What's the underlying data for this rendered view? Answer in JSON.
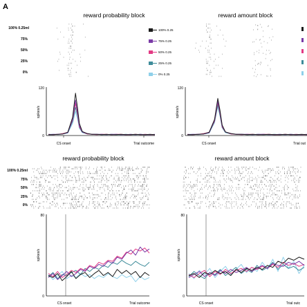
{
  "panel_label": "A",
  "colors": {
    "c100": "#1b1b1b",
    "c75": "#7a3aa6",
    "c50": "#e23a84",
    "c25": "#3e8c9a",
    "c0": "#8fd0ea",
    "raster": "#333333"
  },
  "legend": {
    "items": [
      {
        "label": "100% 0.25",
        "color": "#1b1b1b"
      },
      {
        "label": "75% 0.25",
        "color": "#7a3aa6"
      },
      {
        "label": "50% 0.25",
        "color": "#e23a84"
      },
      {
        "label": "25% 0.25",
        "color": "#3e8c9a"
      },
      {
        "label": "0% 0.25",
        "color": "#8fd0ea"
      }
    ]
  },
  "chart_data": [
    {
      "type": "line",
      "title": "reward probability block",
      "row_labels": [
        "100% 0.25ml",
        "75%",
        "50%",
        "25%",
        "0%"
      ],
      "ylabel": "spikes/s",
      "ylim": [
        0,
        120
      ],
      "yticks": [
        "0",
        "60",
        "120"
      ],
      "xtick_labels": [
        "CS onset",
        "Trial outcome"
      ],
      "x": [
        0,
        0.05,
        0.1,
        0.15,
        0.2,
        0.25,
        0.28,
        0.3,
        0.32,
        0.35,
        0.4,
        0.45,
        0.5,
        0.55,
        0.6,
        0.65,
        0.7,
        0.75,
        0.8,
        0.85,
        0.9,
        0.95,
        1.0,
        1.05,
        1.1
      ],
      "series": [
        {
          "name": "100% 0.25",
          "color": "#1b1b1b",
          "values": [
            2,
            2,
            3,
            4,
            8,
            45,
            105,
            70,
            30,
            10,
            5,
            3,
            3,
            2,
            3,
            2,
            2,
            3,
            2,
            2,
            3,
            2,
            2,
            3,
            2
          ]
        },
        {
          "name": "75% 0.25",
          "color": "#7a3aa6",
          "values": [
            2,
            3,
            3,
            4,
            7,
            40,
            88,
            60,
            25,
            9,
            5,
            3,
            3,
            3,
            2,
            3,
            3,
            2,
            2,
            3,
            2,
            3,
            2,
            2,
            3
          ]
        },
        {
          "name": "50% 0.25",
          "color": "#e23a84",
          "values": [
            3,
            2,
            3,
            5,
            8,
            38,
            80,
            55,
            22,
            9,
            4,
            3,
            2,
            3,
            3,
            2,
            3,
            3,
            2,
            2,
            3,
            2,
            3,
            2,
            2
          ]
        },
        {
          "name": "25% 0.25",
          "color": "#3e8c9a",
          "values": [
            2,
            2,
            3,
            4,
            7,
            35,
            70,
            50,
            20,
            8,
            4,
            3,
            3,
            2,
            2,
            3,
            2,
            2,
            3,
            2,
            2,
            3,
            2,
            2,
            2
          ]
        },
        {
          "name": "0% 0.25",
          "color": "#8fd0ea",
          "values": [
            3,
            3,
            2,
            4,
            6,
            30,
            60,
            42,
            18,
            7,
            4,
            3,
            2,
            3,
            2,
            2,
            3,
            2,
            2,
            3,
            2,
            2,
            3,
            2,
            2
          ]
        }
      ]
    },
    {
      "type": "line",
      "title": "reward amount block",
      "ylabel": "spikes/s",
      "ylim": [
        0,
        120
      ],
      "yticks": [
        "0",
        "60",
        "120"
      ],
      "xtick_labels": [
        "CS onset",
        "Trial out"
      ],
      "x": [
        0,
        0.05,
        0.1,
        0.15,
        0.2,
        0.25,
        0.28,
        0.3,
        0.32,
        0.35,
        0.4,
        0.45,
        0.5,
        0.55,
        0.6,
        0.65,
        0.7,
        0.75,
        0.8,
        0.85,
        0.9,
        0.95,
        1.0,
        1.05,
        1.1
      ],
      "series": [
        {
          "name": "100% 0.25",
          "color": "#1b1b1b",
          "values": [
            2,
            2,
            3,
            4,
            8,
            40,
            92,
            62,
            26,
            9,
            5,
            3,
            3,
            2,
            3,
            2,
            2,
            3,
            2,
            2,
            3,
            2,
            2,
            3,
            2
          ]
        },
        {
          "name": "75% 0.25",
          "color": "#7a3aa6",
          "values": [
            2,
            3,
            3,
            4,
            7,
            38,
            85,
            58,
            24,
            9,
            5,
            3,
            3,
            3,
            2,
            3,
            3,
            2,
            2,
            3,
            2,
            3,
            2,
            2,
            3
          ]
        },
        {
          "name": "50% 0.25",
          "color": "#e23a84",
          "values": [
            3,
            2,
            3,
            5,
            8,
            36,
            82,
            55,
            22,
            9,
            4,
            3,
            2,
            3,
            3,
            2,
            3,
            3,
            2,
            2,
            3,
            2,
            3,
            2,
            2
          ]
        },
        {
          "name": "25% 0.25",
          "color": "#3e8c9a",
          "values": [
            2,
            2,
            3,
            4,
            7,
            34,
            76,
            50,
            20,
            8,
            4,
            3,
            3,
            2,
            2,
            3,
            2,
            2,
            3,
            2,
            2,
            3,
            2,
            2,
            2
          ]
        },
        {
          "name": "0% 0.25",
          "color": "#8fd0ea",
          "values": [
            3,
            3,
            2,
            4,
            6,
            32,
            72,
            48,
            19,
            7,
            4,
            3,
            2,
            3,
            2,
            2,
            3,
            2,
            2,
            3,
            2,
            2,
            3,
            2,
            2
          ]
        }
      ]
    },
    {
      "type": "line",
      "title": "reward probability block",
      "row_labels": [
        "100% 0.25ml",
        "75%",
        "50%",
        "25%",
        "0%"
      ],
      "ylabel": "spikes/s",
      "ylim": [
        0,
        80
      ],
      "yticks": [
        "0",
        "40",
        "80"
      ],
      "xtick_labels": [
        "CS onset",
        "Trial outcome"
      ],
      "x": [
        0,
        0.05,
        0.1,
        0.15,
        0.2,
        0.25,
        0.3,
        0.35,
        0.4,
        0.45,
        0.5,
        0.55,
        0.6,
        0.65,
        0.7,
        0.75,
        0.8,
        0.85,
        0.9,
        0.95,
        1.0,
        1.05,
        1.1
      ],
      "series": [
        {
          "name": "100% 0.25",
          "color": "#1b1b1b",
          "values": [
            20,
            18,
            22,
            15,
            19,
            24,
            17,
            21,
            23,
            18,
            22,
            25,
            20,
            23,
            19,
            26,
            22,
            25,
            21,
            24,
            18,
            23,
            20
          ]
        },
        {
          "name": "75% 0.25",
          "color": "#7a3aa6",
          "values": [
            18,
            22,
            16,
            20,
            24,
            19,
            22,
            26,
            24,
            29,
            27,
            31,
            29,
            34,
            32,
            38,
            36,
            42,
            45,
            40,
            48,
            43,
            46
          ]
        },
        {
          "name": "50% 0.25",
          "color": "#e23a84",
          "values": [
            22,
            19,
            24,
            18,
            21,
            25,
            23,
            27,
            25,
            30,
            28,
            33,
            31,
            35,
            34,
            39,
            37,
            43,
            41,
            46,
            44,
            47,
            42
          ]
        },
        {
          "name": "25% 0.25",
          "color": "#3e8c9a",
          "values": [
            19,
            23,
            17,
            21,
            20,
            23,
            25,
            21,
            27,
            24,
            28,
            26,
            30,
            28,
            33,
            31,
            35,
            32,
            30,
            34,
            31,
            29,
            33
          ]
        },
        {
          "name": "0% 0.25",
          "color": "#8fd0ea",
          "values": [
            21,
            16,
            20,
            24,
            17,
            20,
            18,
            22,
            19,
            21,
            17,
            20,
            18,
            22,
            19,
            17,
            21,
            18,
            20,
            14,
            19,
            16,
            18
          ]
        }
      ]
    },
    {
      "type": "line",
      "title": "reward amount block",
      "ylabel": "spikes/s",
      "ylim": [
        0,
        80
      ],
      "yticks": [
        "0",
        "40",
        "80"
      ],
      "xtick_labels": [
        "CS onset",
        "Trial outc"
      ],
      "x": [
        0,
        0.05,
        0.1,
        0.15,
        0.2,
        0.25,
        0.3,
        0.35,
        0.4,
        0.45,
        0.5,
        0.55,
        0.6,
        0.65,
        0.7,
        0.75,
        0.8,
        0.85,
        0.9,
        0.95,
        1.0,
        1.05,
        1.1
      ],
      "series": [
        {
          "name": "100% 0.25",
          "color": "#1b1b1b",
          "values": [
            20,
            22,
            18,
            23,
            21,
            25,
            22,
            24,
            20,
            26,
            23,
            27,
            25,
            28,
            26,
            30,
            28,
            34,
            32,
            37,
            35,
            38,
            36
          ]
        },
        {
          "name": "75% 0.25",
          "color": "#7a3aa6",
          "values": [
            18,
            21,
            24,
            19,
            23,
            20,
            25,
            22,
            26,
            23,
            25,
            28,
            24,
            27,
            30,
            27,
            32,
            30,
            29,
            33,
            31,
            34,
            30
          ]
        },
        {
          "name": "50% 0.25",
          "color": "#e23a84",
          "values": [
            21,
            18,
            22,
            25,
            19,
            24,
            21,
            26,
            22,
            25,
            27,
            24,
            28,
            26,
            29,
            27,
            31,
            28,
            33,
            30,
            32,
            29,
            31
          ]
        },
        {
          "name": "25% 0.25",
          "color": "#3e8c9a",
          "values": [
            19,
            24,
            20,
            17,
            23,
            21,
            26,
            20,
            24,
            28,
            22,
            26,
            23,
            30,
            25,
            28,
            33,
            26,
            31,
            27,
            29,
            25,
            28
          ]
        },
        {
          "name": "0% 0.25",
          "color": "#8fd0ea",
          "values": [
            22,
            17,
            25,
            21,
            27,
            18,
            24,
            29,
            21,
            26,
            31,
            23,
            28,
            24,
            33,
            26,
            36,
            24,
            38,
            27,
            34,
            22,
            30
          ]
        }
      ]
    }
  ]
}
